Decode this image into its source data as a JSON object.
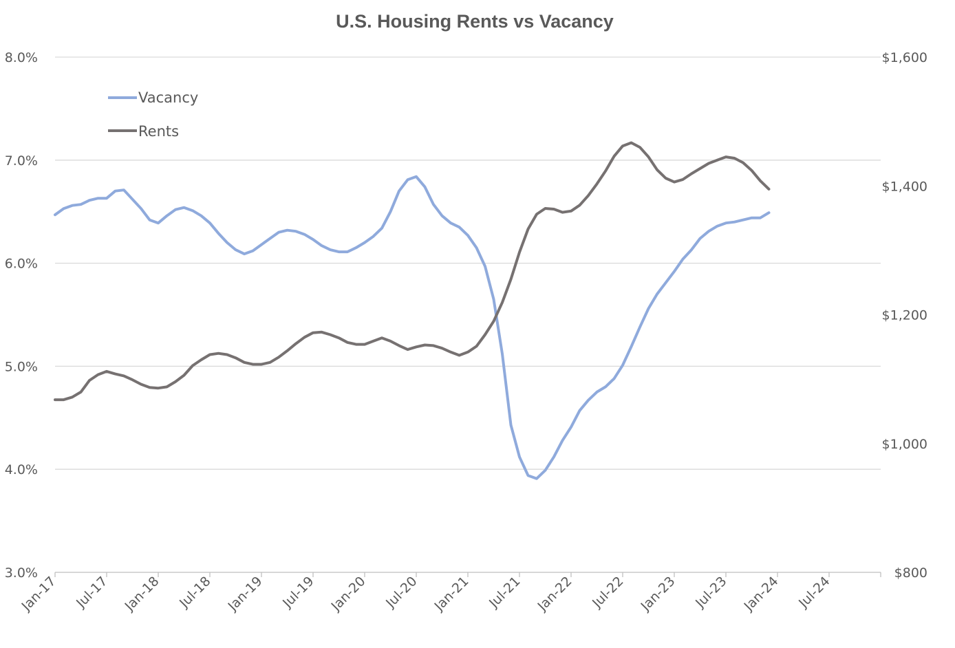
{
  "chart_data": {
    "type": "line",
    "title": "U.S. Housing Rents vs Vacancy",
    "x_tick_labels": [
      "Jan-17",
      "Jul-17",
      "Jan-18",
      "Jul-18",
      "Jan-19",
      "Jul-19",
      "Jan-20",
      "Jul-20",
      "Jan-21",
      "Jul-21",
      "Jan-22",
      "Jul-22",
      "Jan-23",
      "Jul-23",
      "Jan-24",
      "Jul-24"
    ],
    "x_range": [
      "2017-01",
      "2024-12"
    ],
    "y_left": {
      "ticks": [
        "3.0%",
        "4.0%",
        "5.0%",
        "6.0%",
        "7.0%",
        "8.0%"
      ],
      "ylim": [
        3.0,
        8.0
      ],
      "unit": "%"
    },
    "y_right": {
      "ticks": [
        "$800",
        "$1,000",
        "$1,200",
        "$1,400",
        "$1,600"
      ],
      "ylim": [
        800,
        1600
      ],
      "unit": "$"
    },
    "grid": "horizontal",
    "legend": {
      "position": "top-left",
      "entries": [
        "Vacancy",
        "Rents"
      ]
    },
    "x": [
      "2017-01",
      "2017-02",
      "2017-03",
      "2017-04",
      "2017-05",
      "2017-06",
      "2017-07",
      "2017-08",
      "2017-09",
      "2017-10",
      "2017-11",
      "2017-12",
      "2018-01",
      "2018-02",
      "2018-03",
      "2018-04",
      "2018-05",
      "2018-06",
      "2018-07",
      "2018-08",
      "2018-09",
      "2018-10",
      "2018-11",
      "2018-12",
      "2019-01",
      "2019-02",
      "2019-03",
      "2019-04",
      "2019-05",
      "2019-06",
      "2019-07",
      "2019-08",
      "2019-09",
      "2019-10",
      "2019-11",
      "2019-12",
      "2020-01",
      "2020-02",
      "2020-03",
      "2020-04",
      "2020-05",
      "2020-06",
      "2020-07",
      "2020-08",
      "2020-09",
      "2020-10",
      "2020-11",
      "2020-12",
      "2021-01",
      "2021-02",
      "2021-03",
      "2021-04",
      "2021-05",
      "2021-06",
      "2021-07",
      "2021-08",
      "2021-09",
      "2021-10",
      "2021-11",
      "2021-12",
      "2022-01",
      "2022-02",
      "2022-03",
      "2022-04",
      "2022-05",
      "2022-06",
      "2022-07",
      "2022-08",
      "2022-09",
      "2022-10",
      "2022-11",
      "2022-12",
      "2023-01",
      "2023-02",
      "2023-03",
      "2023-04",
      "2023-05",
      "2023-06",
      "2023-07",
      "2023-08",
      "2023-09",
      "2023-10",
      "2023-11",
      "2023-12"
    ],
    "series": [
      {
        "name": "Vacancy",
        "axis": "left",
        "color": "#8faadc",
        "values": [
          6.47,
          6.53,
          6.56,
          6.57,
          6.61,
          6.63,
          6.63,
          6.7,
          6.71,
          6.62,
          6.53,
          6.42,
          6.39,
          6.46,
          6.52,
          6.54,
          6.51,
          6.46,
          6.39,
          6.29,
          6.2,
          6.13,
          6.09,
          6.12,
          6.18,
          6.24,
          6.3,
          6.32,
          6.31,
          6.28,
          6.23,
          6.17,
          6.13,
          6.11,
          6.11,
          6.15,
          6.2,
          6.26,
          6.34,
          6.5,
          6.7,
          6.81,
          6.84,
          6.74,
          6.57,
          6.46,
          6.39,
          6.35,
          6.27,
          6.15,
          5.97,
          5.65,
          5.12,
          4.43,
          4.12,
          3.94,
          3.91,
          3.99,
          4.12,
          4.28,
          4.41,
          4.57,
          4.67,
          4.75,
          4.8,
          4.88,
          5.01,
          5.19,
          5.38,
          5.56,
          5.7,
          5.81,
          5.92,
          6.04,
          6.13,
          6.24,
          6.31,
          6.36,
          6.39,
          6.4,
          6.42,
          6.44,
          6.44,
          6.49
        ]
      },
      {
        "name": "Rents",
        "axis": "right",
        "color": "#767171",
        "values": [
          1068,
          1068,
          1072,
          1080,
          1098,
          1107,
          1112,
          1108,
          1105,
          1099,
          1092,
          1087,
          1086,
          1088,
          1096,
          1106,
          1121,
          1130,
          1138,
          1140,
          1138,
          1133,
          1126,
          1123,
          1123,
          1126,
          1134,
          1144,
          1155,
          1165,
          1172,
          1173,
          1169,
          1164,
          1157,
          1154,
          1154,
          1159,
          1164,
          1159,
          1152,
          1146,
          1150,
          1153,
          1152,
          1148,
          1142,
          1137,
          1142,
          1151,
          1169,
          1190,
          1219,
          1255,
          1297,
          1333,
          1356,
          1365,
          1364,
          1359,
          1361,
          1370,
          1385,
          1403,
          1423,
          1446,
          1462,
          1467,
          1460,
          1445,
          1425,
          1412,
          1406,
          1410,
          1419,
          1427,
          1435,
          1440,
          1445,
          1443,
          1436,
          1424,
          1408,
          1395
        ]
      }
    ]
  }
}
